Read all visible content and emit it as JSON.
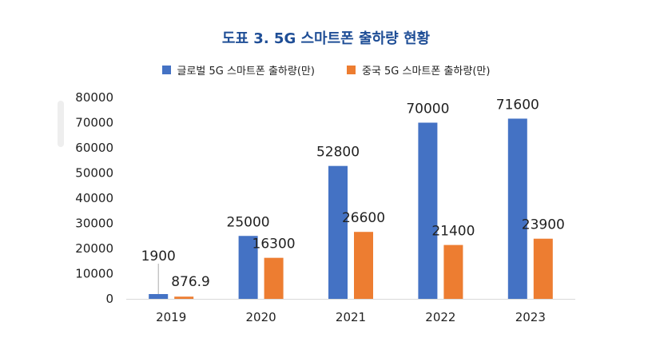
{
  "title": "도표 3. 5G 스마트폰 출하량 현황",
  "colors": {
    "global": "#4472c4",
    "china": "#ed7d31",
    "title": "#1f4e96"
  },
  "chart_data": {
    "type": "bar",
    "title": "도표 3. 5G 스마트폰 출하량 현황",
    "xlabel": "",
    "ylabel": "",
    "categories": [
      "2019",
      "2020",
      "2021",
      "2022",
      "2023"
    ],
    "series": [
      {
        "name": "글로벌 5G 스마트폰 출하량(만)",
        "values": [
          1900,
          25000,
          52800,
          70000,
          71600
        ],
        "labels": [
          "1900",
          "25000",
          "52800",
          "70000",
          "71600"
        ]
      },
      {
        "name": "중국 5G 스마트폰 출하량(만)",
        "values": [
          876.9,
          16300,
          26600,
          21400,
          23900
        ],
        "labels": [
          "876.9",
          "16300",
          "26600",
          "21400",
          "23900"
        ]
      }
    ],
    "ylim": [
      0,
      80000
    ],
    "yticks": [
      "0",
      "10000",
      "20000",
      "30000",
      "40000",
      "50000",
      "60000",
      "70000",
      "80000"
    ],
    "grid": false,
    "legend_position": "top"
  }
}
